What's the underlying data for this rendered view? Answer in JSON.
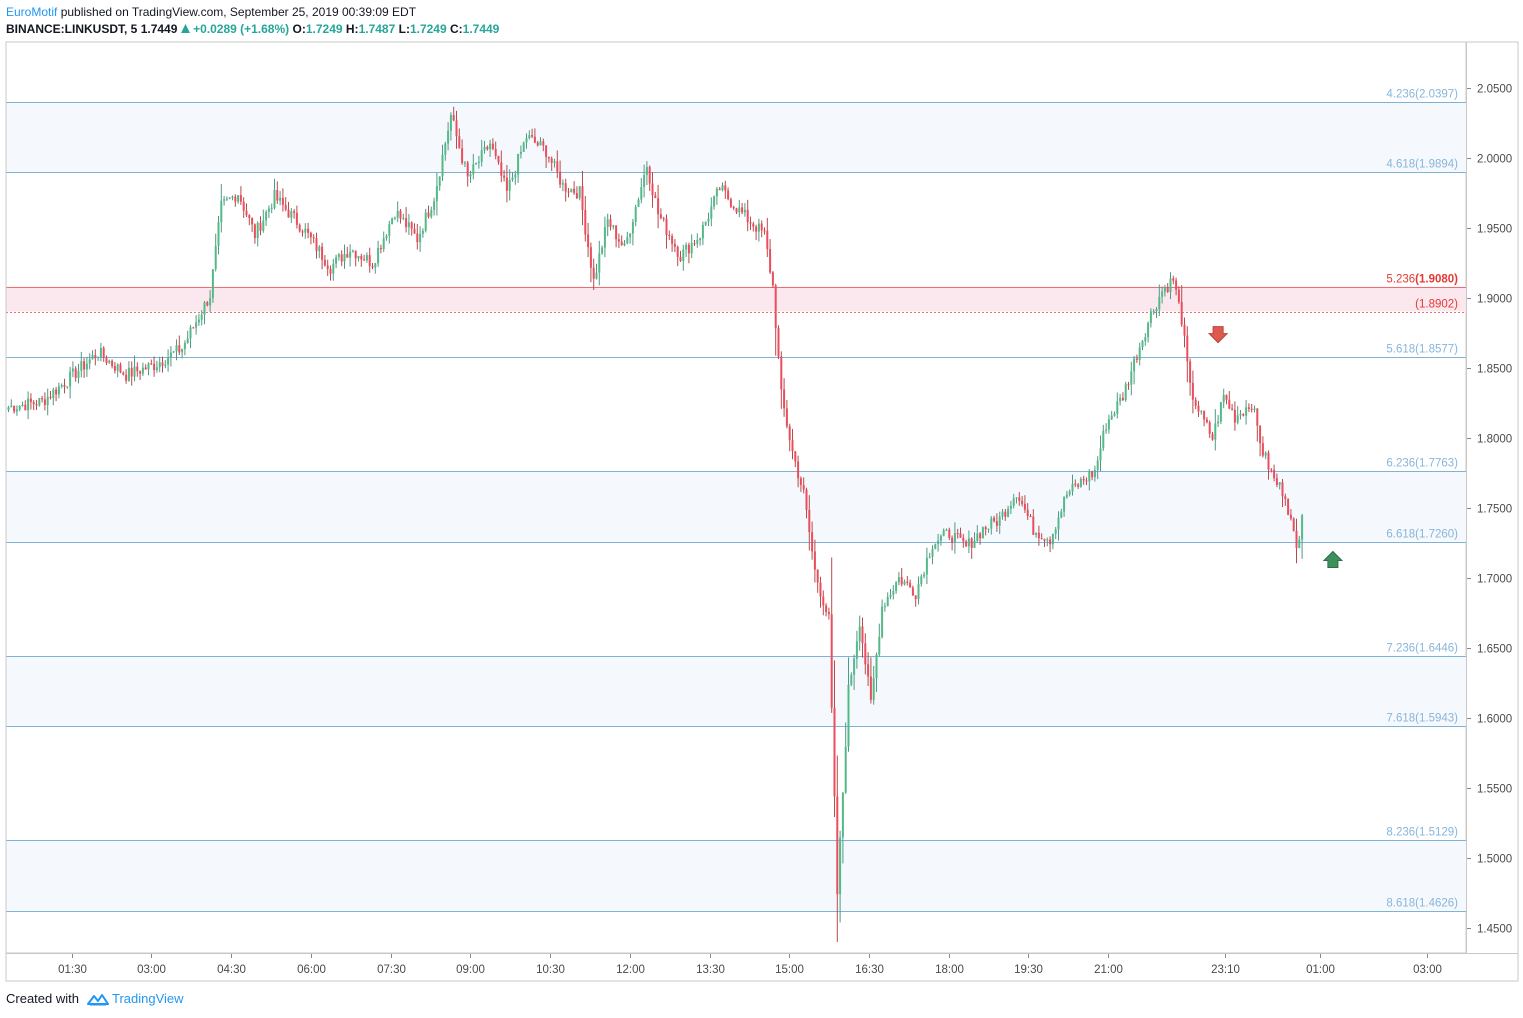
{
  "header": {
    "author": "EuroMotif",
    "published_text": "published on TradingView.com, September 25, 2019 00:39:09 EDT",
    "symbol": "BINANCE:LINKUSDT, 5",
    "last": "1.7449",
    "change": "+0.0289 (+1.68%)",
    "change_direction": "up",
    "o_label": "O:",
    "o_value": "1.7249",
    "h_label": "H:",
    "h_value": "1.7487",
    "l_label": "L:",
    "l_value": "1.7249",
    "c_label": "C:",
    "c_value": "1.7449"
  },
  "footer": {
    "created_with": "Created with",
    "brand": "TradingView",
    "brand_icon": "tradingview-logo-icon"
  },
  "colors": {
    "up": "#26a69a",
    "up_body": "#53b987",
    "down": "#ef5350",
    "down_body": "#eb4d5c",
    "fib_line": "#7fb3d5",
    "fib_label": "#87b5db",
    "fib_band": "#f5f9fd",
    "red_level": "#e57373",
    "red_band": "#fbe8ee",
    "red_label": "#e53935"
  },
  "chart_data": {
    "type": "candlestick",
    "xlabel": "",
    "ylabel": "",
    "ylim": [
      1.4325,
      2.0825
    ],
    "y_ticks": [
      "1.4500",
      "1.5000",
      "1.5500",
      "1.6000",
      "1.6500",
      "1.7000",
      "1.7500",
      "1.8000",
      "1.8500",
      "1.9000",
      "1.9500",
      "2.0000",
      "2.0500"
    ],
    "x_ticks": [
      "01:30",
      "03:00",
      "04:30",
      "06:00",
      "07:30",
      "09:00",
      "10:30",
      "12:00",
      "13:30",
      "15:00",
      "16:30",
      "18:00",
      "19:30",
      "21:00",
      "23:10",
      "01:00",
      "03:00"
    ],
    "fib_levels": [
      {
        "ratio": "4.236",
        "value": "2.0397",
        "price": 2.0397
      },
      {
        "ratio": "4.618",
        "value": "1.9894",
        "price": 1.9894
      },
      {
        "ratio": "5.236",
        "value": "1.9080",
        "price": 1.908,
        "highlight": true
      },
      {
        "ratio": "",
        "value": "1.8902",
        "price": 1.8902,
        "highlight": true,
        "dotted": true
      },
      {
        "ratio": "5.618",
        "value": "1.8577",
        "price": 1.8577
      },
      {
        "ratio": "6.236",
        "value": "1.7763",
        "price": 1.7763
      },
      {
        "ratio": "6.618",
        "value": "1.7260",
        "price": 1.726
      },
      {
        "ratio": "7.236",
        "value": "1.6446",
        "price": 1.6446
      },
      {
        "ratio": "7.618",
        "value": "1.5943",
        "price": 1.5943
      },
      {
        "ratio": "8.236",
        "value": "1.5129",
        "price": 1.5129
      },
      {
        "ratio": "8.618",
        "value": "1.4626",
        "price": 1.4626
      }
    ],
    "keypoints": [
      [
        0,
        1.822
      ],
      [
        12,
        1.826
      ],
      [
        22,
        1.843
      ],
      [
        32,
        1.861
      ],
      [
        42,
        1.845
      ],
      [
        52,
        1.852
      ],
      [
        62,
        1.864
      ],
      [
        72,
        1.902
      ],
      [
        76,
        1.965
      ],
      [
        82,
        1.975
      ],
      [
        88,
        1.945
      ],
      [
        95,
        1.972
      ],
      [
        105,
        1.95
      ],
      [
        115,
        1.922
      ],
      [
        122,
        1.935
      ],
      [
        130,
        1.925
      ],
      [
        138,
        1.962
      ],
      [
        146,
        1.942
      ],
      [
        152,
        1.972
      ],
      [
        158,
        2.03
      ],
      [
        164,
        1.985
      ],
      [
        172,
        2.01
      ],
      [
        178,
        1.975
      ],
      [
        185,
        2.015
      ],
      [
        192,
        2.005
      ],
      [
        198,
        1.98
      ],
      [
        204,
        1.975
      ],
      [
        209,
        1.912
      ],
      [
        214,
        1.955
      ],
      [
        220,
        1.935
      ],
      [
        228,
        1.995
      ],
      [
        232,
        1.96
      ],
      [
        240,
        1.93
      ],
      [
        247,
        1.945
      ],
      [
        254,
        1.978
      ],
      [
        262,
        1.96
      ],
      [
        270,
        1.945
      ],
      [
        273,
        1.908
      ],
      [
        276,
        1.83
      ],
      [
        280,
        1.79
      ],
      [
        284,
        1.76
      ],
      [
        288,
        1.705
      ],
      [
        293,
        1.67
      ],
      [
        296,
        1.475
      ],
      [
        300,
        1.62
      ],
      [
        304,
        1.67
      ],
      [
        308,
        1.61
      ],
      [
        312,
        1.68
      ],
      [
        318,
        1.7
      ],
      [
        324,
        1.69
      ],
      [
        330,
        1.725
      ],
      [
        336,
        1.732
      ],
      [
        342,
        1.722
      ],
      [
        348,
        1.735
      ],
      [
        354,
        1.742
      ],
      [
        360,
        1.762
      ],
      [
        366,
        1.735
      ],
      [
        372,
        1.728
      ],
      [
        378,
        1.76
      ],
      [
        384,
        1.77
      ],
      [
        388,
        1.776
      ],
      [
        392,
        1.81
      ],
      [
        398,
        1.83
      ],
      [
        403,
        1.86
      ],
      [
        408,
        1.888
      ],
      [
        412,
        1.905
      ],
      [
        416,
        1.913
      ],
      [
        419,
        1.885
      ],
      [
        422,
        1.835
      ],
      [
        426,
        1.815
      ],
      [
        430,
        1.8
      ],
      [
        434,
        1.83
      ],
      [
        438,
        1.815
      ],
      [
        444,
        1.825
      ],
      [
        448,
        1.79
      ],
      [
        452,
        1.77
      ],
      [
        456,
        1.76
      ],
      [
        460,
        1.72
      ],
      [
        462,
        1.7449
      ]
    ],
    "candle_count": 463,
    "annotations": [
      {
        "type": "arrow-down",
        "color": "red",
        "time_index": 432,
        "price": 1.873
      },
      {
        "type": "arrow-up",
        "color": "green",
        "time_index": 473,
        "price": 1.714
      }
    ]
  }
}
